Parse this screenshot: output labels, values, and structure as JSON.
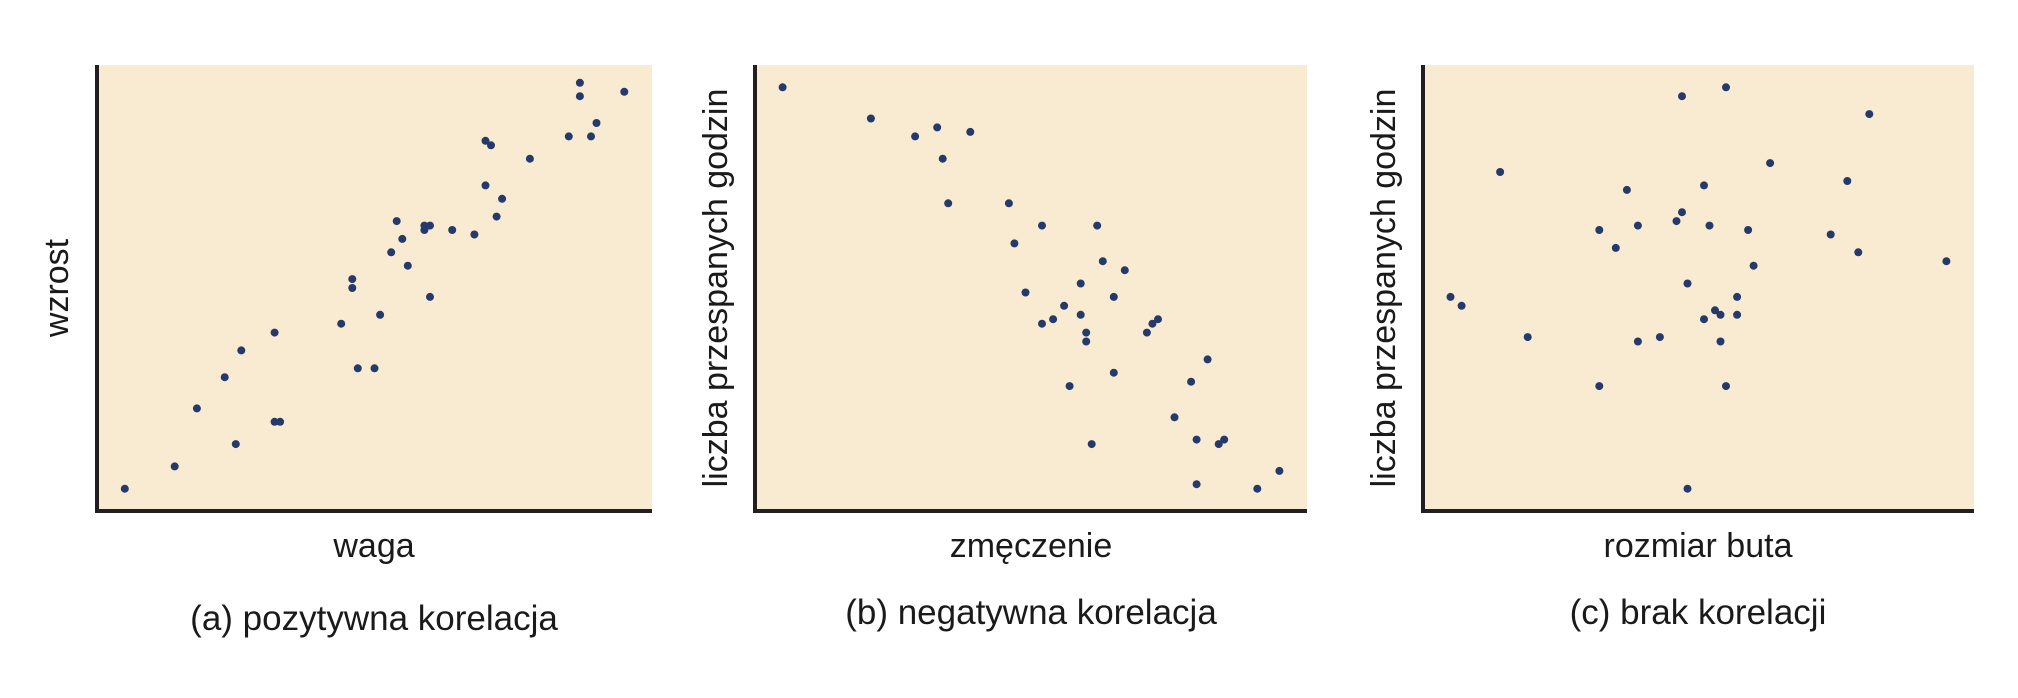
{
  "colors": {
    "plot_background": "#f8ebd1",
    "point": "#253a6b",
    "axis": "#231f20"
  },
  "chart_data": [
    {
      "type": "scatter",
      "title": "",
      "caption": "(a) pozytywna korelacja",
      "xlabel": "waga",
      "ylabel": "wzrost",
      "xlim": [
        0,
        100
      ],
      "ylim": [
        0,
        100
      ],
      "ticks": false,
      "grid": false,
      "legend": "none",
      "points": [
        [
          5,
          5
        ],
        [
          14,
          10
        ],
        [
          18,
          23
        ],
        [
          23,
          30
        ],
        [
          26,
          36
        ],
        [
          25,
          15
        ],
        [
          32,
          20
        ],
        [
          33,
          20
        ],
        [
          32,
          40
        ],
        [
          44,
          42
        ],
        [
          46,
          52
        ],
        [
          46,
          50
        ],
        [
          47,
          32
        ],
        [
          50,
          32
        ],
        [
          51,
          44
        ],
        [
          53,
          58
        ],
        [
          54,
          65
        ],
        [
          55,
          61
        ],
        [
          56,
          55
        ],
        [
          59,
          63
        ],
        [
          59,
          64
        ],
        [
          60,
          64
        ],
        [
          60,
          48
        ],
        [
          64,
          63
        ],
        [
          68,
          62
        ],
        [
          70,
          83
        ],
        [
          71,
          82
        ],
        [
          70,
          73
        ],
        [
          72,
          66
        ],
        [
          73,
          70
        ],
        [
          78,
          79
        ],
        [
          85,
          84
        ],
        [
          87,
          96
        ],
        [
          87,
          93
        ],
        [
          89,
          84
        ],
        [
          90,
          87
        ],
        [
          95,
          94
        ]
      ]
    },
    {
      "type": "scatter",
      "title": "",
      "caption": "(b) negatywna korelacja",
      "xlabel": "zmęczenie",
      "ylabel": "liczba przespanych godzin",
      "xlim": [
        0,
        100
      ],
      "ylim": [
        0,
        100
      ],
      "ticks": false,
      "grid": false,
      "legend": "none",
      "points": [
        [
          5,
          95
        ],
        [
          21,
          88
        ],
        [
          29,
          84
        ],
        [
          33,
          86
        ],
        [
          34,
          79
        ],
        [
          35,
          69
        ],
        [
          39,
          85
        ],
        [
          46,
          69
        ],
        [
          47,
          60
        ],
        [
          49,
          49
        ],
        [
          52,
          64
        ],
        [
          52,
          42
        ],
        [
          54,
          43
        ],
        [
          56,
          46
        ],
        [
          57,
          28
        ],
        [
          59,
          51
        ],
        [
          59,
          44
        ],
        [
          60,
          40
        ],
        [
          60,
          38
        ],
        [
          61,
          15
        ],
        [
          62,
          64
        ],
        [
          63,
          56
        ],
        [
          65,
          48
        ],
        [
          65,
          31
        ],
        [
          67,
          54
        ],
        [
          71,
          40
        ],
        [
          72,
          42
        ],
        [
          73,
          43
        ],
        [
          76,
          21
        ],
        [
          79,
          29
        ],
        [
          80,
          16
        ],
        [
          80,
          6
        ],
        [
          82,
          34
        ],
        [
          84,
          15
        ],
        [
          85,
          16
        ],
        [
          91,
          5
        ],
        [
          95,
          9
        ]
      ]
    },
    {
      "type": "scatter",
      "title": "",
      "caption": "(c) brak korelacji",
      "xlabel": "rozmiar buta",
      "ylabel": "liczba przespanych godzin",
      "xlim": [
        0,
        100
      ],
      "ylim": [
        0,
        100
      ],
      "ticks": false,
      "grid": false,
      "legend": "none",
      "points": [
        [
          5,
          48
        ],
        [
          7,
          46
        ],
        [
          14,
          76
        ],
        [
          19,
          39
        ],
        [
          32,
          63
        ],
        [
          32,
          28
        ],
        [
          35,
          59
        ],
        [
          37,
          72
        ],
        [
          39,
          64
        ],
        [
          39,
          38
        ],
        [
          43,
          39
        ],
        [
          46,
          65
        ],
        [
          47,
          67
        ],
        [
          47,
          93
        ],
        [
          48,
          51
        ],
        [
          51,
          73
        ],
        [
          51,
          43
        ],
        [
          52,
          64
        ],
        [
          53,
          45
        ],
        [
          54,
          44
        ],
        [
          54,
          38
        ],
        [
          55,
          95
        ],
        [
          55,
          28
        ],
        [
          57,
          44
        ],
        [
          57,
          48
        ],
        [
          59,
          63
        ],
        [
          60,
          55
        ],
        [
          63,
          78
        ],
        [
          74,
          62
        ],
        [
          77,
          74
        ],
        [
          79,
          58
        ],
        [
          81,
          89
        ],
        [
          95,
          56
        ],
        [
          48,
          5
        ]
      ]
    }
  ]
}
